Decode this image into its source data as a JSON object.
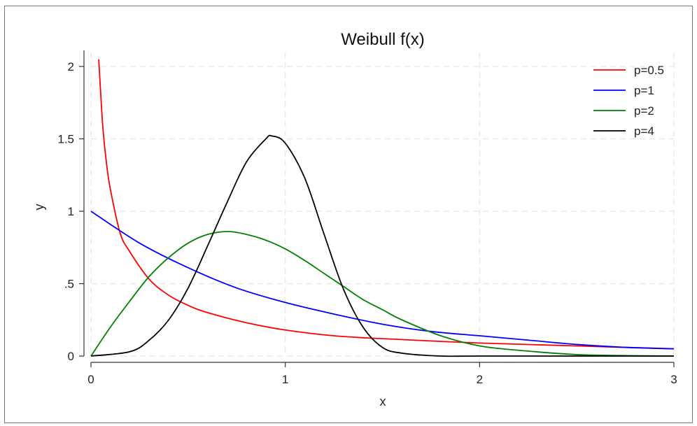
{
  "chart_data": {
    "type": "line",
    "title": "Weibull f(x)",
    "xlabel": "x",
    "ylabel": "y",
    "xlim": [
      0,
      3
    ],
    "ylim": [
      0,
      2.05
    ],
    "x_ticks": [
      0,
      1,
      2,
      3
    ],
    "x_tick_labels": [
      "0",
      "1",
      "2",
      "3"
    ],
    "y_ticks": [
      0,
      0.5,
      1,
      1.5,
      2
    ],
    "y_tick_labels": [
      "0",
      ".5",
      "1",
      "1.5",
      "2"
    ],
    "grid": true,
    "legend_position": "top-right",
    "series": [
      {
        "name": "p=0.5",
        "color": "#ff0000",
        "x": [
          0.04,
          0.06,
          0.08,
          0.1,
          0.15,
          0.2,
          0.3,
          0.4,
          0.5,
          0.6,
          0.8,
          1.0,
          1.25,
          1.5,
          2.0,
          2.5,
          3.0
        ],
        "y": [
          2.05,
          1.6,
          1.33,
          1.15,
          0.85,
          0.72,
          0.53,
          0.42,
          0.35,
          0.3,
          0.23,
          0.18,
          0.14,
          0.12,
          0.09,
          0.07,
          0.05
        ]
      },
      {
        "name": "p=1",
        "color": "#0000ff",
        "x": [
          0,
          0.25,
          0.5,
          0.75,
          1.0,
          1.25,
          1.5,
          1.75,
          2.0,
          2.25,
          2.5,
          2.75,
          3.0
        ],
        "y": [
          1.0,
          0.78,
          0.61,
          0.47,
          0.37,
          0.29,
          0.22,
          0.17,
          0.14,
          0.11,
          0.08,
          0.06,
          0.05
        ]
      },
      {
        "name": "p=2",
        "color": "#008000",
        "x": [
          0,
          0.1,
          0.2,
          0.3,
          0.4,
          0.5,
          0.6,
          0.707,
          0.8,
          0.9,
          1.0,
          1.1,
          1.2,
          1.3,
          1.4,
          1.5,
          1.6,
          1.8,
          2.0,
          2.2,
          2.5,
          2.75,
          3.0
        ],
        "y": [
          0,
          0.2,
          0.38,
          0.55,
          0.68,
          0.78,
          0.84,
          0.86,
          0.84,
          0.8,
          0.74,
          0.66,
          0.57,
          0.48,
          0.39,
          0.32,
          0.25,
          0.14,
          0.07,
          0.04,
          0.01,
          0.003,
          0.0
        ]
      },
      {
        "name": "p=4",
        "color": "#000000",
        "x": [
          0,
          0.2,
          0.3,
          0.4,
          0.5,
          0.6,
          0.7,
          0.8,
          0.9,
          0.93,
          1.0,
          1.1,
          1.2,
          1.3,
          1.4,
          1.5,
          1.6,
          1.8,
          2.0,
          2.5,
          3.0
        ],
        "y": [
          0,
          0.03,
          0.11,
          0.25,
          0.47,
          0.76,
          1.06,
          1.34,
          1.5,
          1.52,
          1.47,
          1.23,
          0.84,
          0.46,
          0.2,
          0.06,
          0.02,
          0.0,
          0.0,
          0.0,
          0.0
        ]
      }
    ]
  }
}
